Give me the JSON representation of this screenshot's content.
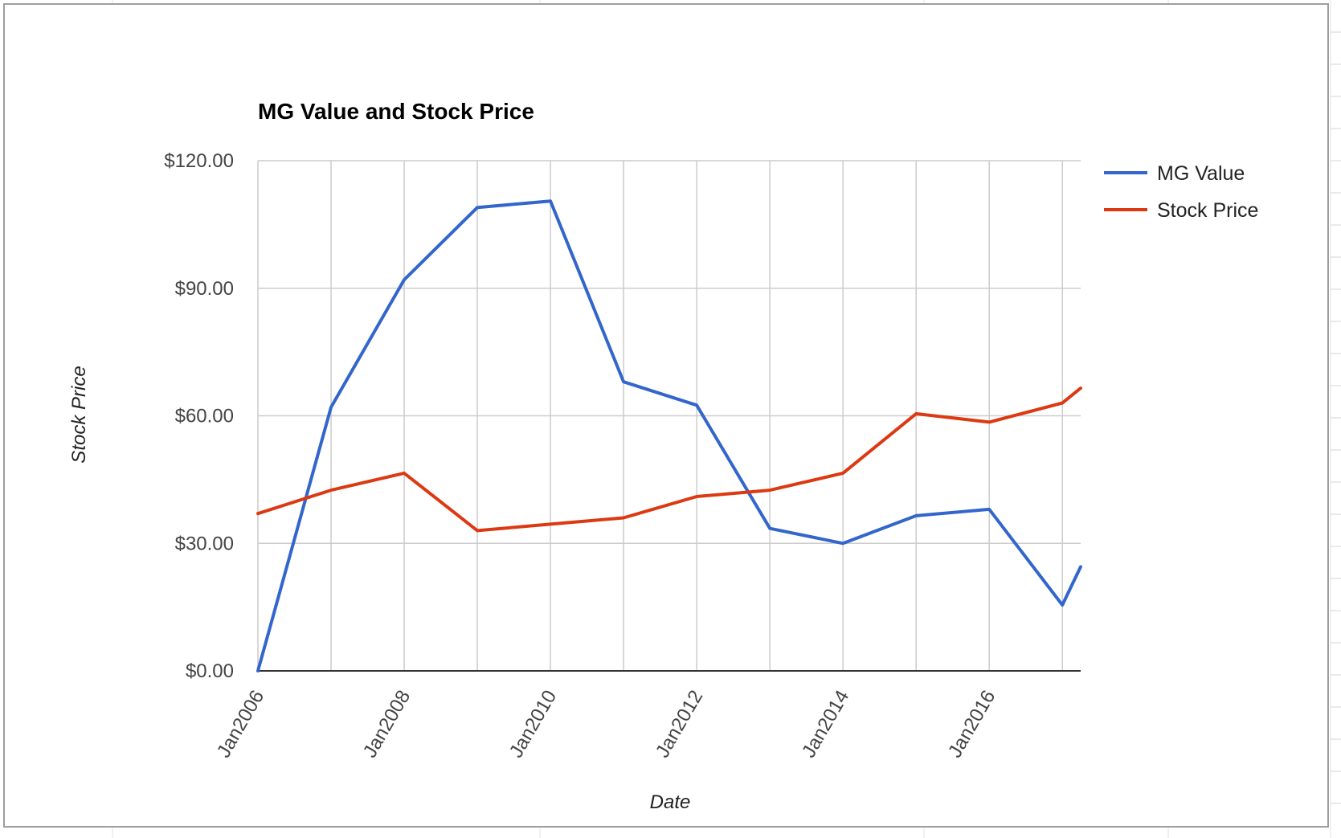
{
  "chart_data": {
    "type": "line",
    "title": "MG Value and Stock Price",
    "xlabel": "Date",
    "ylabel": "Stock Price",
    "x_tick_labels": [
      "Jan2006",
      "Jan2008",
      "Jan2010",
      "Jan2012",
      "Jan2014",
      "Jan2016"
    ],
    "y_tick_labels": [
      "$0.00",
      "$30.00",
      "$60.00",
      "$90.00",
      "$120.00"
    ],
    "ylim": [
      0,
      120
    ],
    "grid": true,
    "legend_position": "right",
    "x": [
      "2006-01",
      "2007-01",
      "2008-01",
      "2009-01",
      "2010-01",
      "2011-01",
      "2012-01",
      "2013-01",
      "2014-01",
      "2015-01",
      "2016-01",
      "2017-01",
      "2017-04"
    ],
    "series": [
      {
        "name": "MG Value",
        "color": "#3366cc",
        "values": [
          0,
          62,
          92,
          109,
          110.5,
          68,
          62.5,
          33.5,
          30,
          36.5,
          38,
          15.5,
          24.5
        ]
      },
      {
        "name": "Stock Price",
        "color": "#dc3912",
        "values": [
          37,
          42.5,
          46.5,
          33,
          34.5,
          36,
          41,
          42.5,
          46.5,
          60.5,
          58.5,
          63,
          66.5
        ]
      }
    ]
  }
}
